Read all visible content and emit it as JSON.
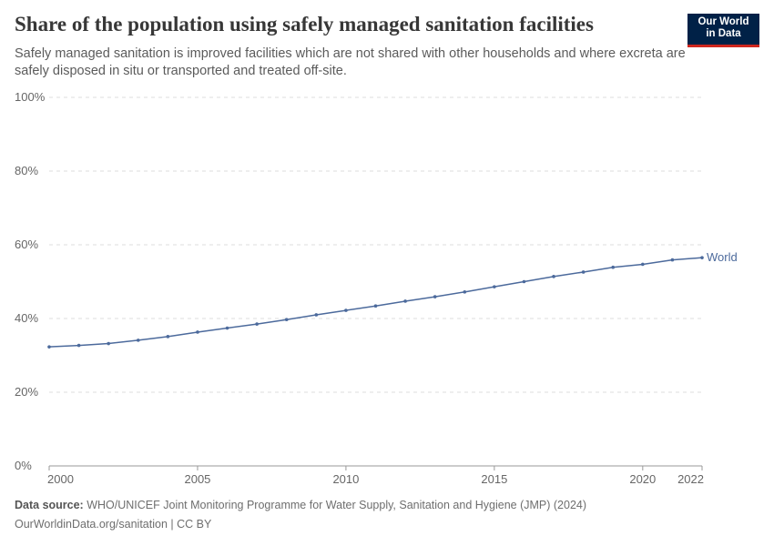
{
  "title": "Share of the population using safely managed sanitation facilities",
  "subtitle": "Safely managed sanitation is improved facilities which are not shared with other households and where excreta are safely disposed in situ or transported and treated off-site.",
  "logo": {
    "line1": "Our World",
    "line2": "in Data"
  },
  "footer": {
    "source_label": "Data source:",
    "source": "WHO/UNICEF Joint Monitoring Programme for Water Supply, Sanitation and Hygiene (JMP) (2024)",
    "url": "OurWorldinData.org/sanitation | CC BY"
  },
  "chart_data": {
    "type": "line",
    "x": [
      2000,
      2001,
      2002,
      2003,
      2004,
      2005,
      2006,
      2007,
      2008,
      2009,
      2010,
      2011,
      2012,
      2013,
      2014,
      2015,
      2016,
      2017,
      2018,
      2019,
      2020,
      2021,
      2022
    ],
    "series": [
      {
        "name": "World",
        "color": "#4c6a9c",
        "values": [
          32.3,
          32.7,
          33.2,
          34.1,
          35.1,
          36.3,
          37.4,
          38.5,
          39.7,
          41.0,
          42.2,
          43.4,
          44.7,
          45.9,
          47.2,
          48.6,
          50.0,
          51.4,
          52.6,
          53.9,
          54.7,
          55.9,
          56.5
        ]
      }
    ],
    "xlim": [
      2000,
      2022
    ],
    "ylim": [
      0,
      100
    ],
    "xticks": [
      "2000",
      "2005",
      "2010",
      "2015",
      "2020",
      "2022"
    ],
    "yticks": [
      "0%",
      "20%",
      "40%",
      "60%",
      "80%",
      "100%"
    ],
    "grid": "horizontal dashed",
    "legend": "end-of-line label"
  }
}
